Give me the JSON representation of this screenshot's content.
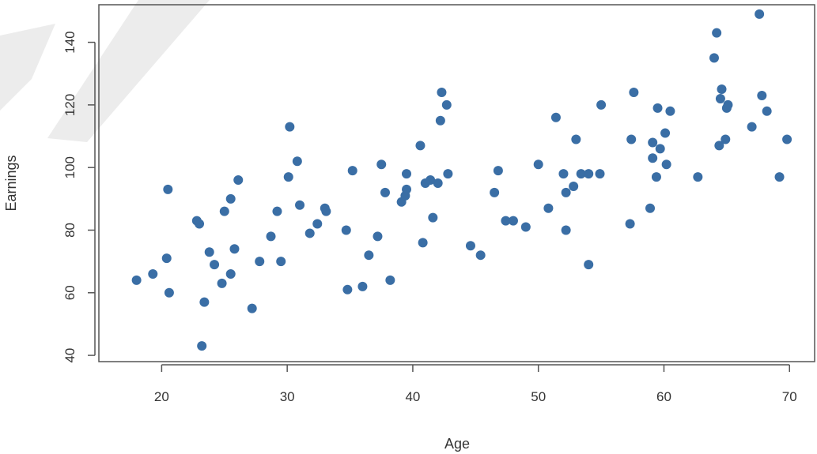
{
  "chart_data": {
    "type": "scatter",
    "title": "",
    "xlabel": "Age",
    "ylabel": "Earnings",
    "xlim": [
      15,
      72
    ],
    "ylim": [
      38,
      152
    ],
    "xticks": [
      20,
      30,
      40,
      50,
      60,
      70
    ],
    "yticks": [
      40,
      60,
      80,
      100,
      120,
      140
    ],
    "grid": false,
    "legend": "none",
    "point_color": "#3a6ea5",
    "points": [
      [
        18,
        64
      ],
      [
        19.3,
        66
      ],
      [
        20.4,
        71
      ],
      [
        20.6,
        60
      ],
      [
        20.5,
        93
      ],
      [
        22.8,
        83
      ],
      [
        23.0,
        82
      ],
      [
        23.4,
        57
      ],
      [
        23.2,
        43
      ],
      [
        23.8,
        73
      ],
      [
        24.2,
        69
      ],
      [
        24.8,
        63
      ],
      [
        25.0,
        86
      ],
      [
        25.5,
        66
      ],
      [
        25.5,
        90
      ],
      [
        25.8,
        74
      ],
      [
        26.1,
        96
      ],
      [
        27.2,
        55
      ],
      [
        27.8,
        70
      ],
      [
        28.7,
        78
      ],
      [
        29.2,
        86
      ],
      [
        29.5,
        70
      ],
      [
        30.1,
        97
      ],
      [
        30.2,
        113
      ],
      [
        30.8,
        102
      ],
      [
        31.0,
        88
      ],
      [
        31.8,
        79
      ],
      [
        32.4,
        82
      ],
      [
        33.0,
        87
      ],
      [
        33.1,
        86
      ],
      [
        34.7,
        80
      ],
      [
        34.8,
        61
      ],
      [
        35.2,
        99
      ],
      [
        36.0,
        62
      ],
      [
        36.5,
        72
      ],
      [
        37.2,
        78
      ],
      [
        37.5,
        101
      ],
      [
        37.8,
        92
      ],
      [
        38.2,
        64
      ],
      [
        39.1,
        89
      ],
      [
        39.4,
        91
      ],
      [
        39.5,
        93
      ],
      [
        39.5,
        98
      ],
      [
        40.6,
        107
      ],
      [
        40.8,
        76
      ],
      [
        41.0,
        95
      ],
      [
        41.4,
        96
      ],
      [
        41.6,
        84
      ],
      [
        42.0,
        95
      ],
      [
        42.2,
        115
      ],
      [
        42.3,
        124
      ],
      [
        42.7,
        120
      ],
      [
        42.8,
        98
      ],
      [
        44.6,
        75
      ],
      [
        45.4,
        72
      ],
      [
        46.5,
        92
      ],
      [
        46.8,
        99
      ],
      [
        47.4,
        83
      ],
      [
        48.0,
        83
      ],
      [
        49.0,
        81
      ],
      [
        50.0,
        101
      ],
      [
        50.8,
        87
      ],
      [
        51.4,
        116
      ],
      [
        52.0,
        98
      ],
      [
        52.2,
        92
      ],
      [
        52.2,
        80
      ],
      [
        52.8,
        94
      ],
      [
        53.0,
        109
      ],
      [
        53.4,
        98
      ],
      [
        54.0,
        98
      ],
      [
        54.0,
        69
      ],
      [
        54.9,
        98
      ],
      [
        55.0,
        120
      ],
      [
        57.3,
        82
      ],
      [
        57.4,
        109
      ],
      [
        57.6,
        124
      ],
      [
        58.9,
        87
      ],
      [
        59.1,
        108
      ],
      [
        59.1,
        103
      ],
      [
        59.4,
        97
      ],
      [
        59.5,
        119
      ],
      [
        59.7,
        106
      ],
      [
        60.1,
        111
      ],
      [
        60.2,
        101
      ],
      [
        60.5,
        118
      ],
      [
        62.7,
        97
      ],
      [
        64.0,
        135
      ],
      [
        64.2,
        143
      ],
      [
        64.4,
        107
      ],
      [
        64.5,
        122
      ],
      [
        64.6,
        125
      ],
      [
        64.9,
        109
      ],
      [
        65.0,
        119
      ],
      [
        65.1,
        120
      ],
      [
        67.0,
        113
      ],
      [
        67.6,
        149
      ],
      [
        67.8,
        123
      ],
      [
        68.2,
        118
      ],
      [
        69.2,
        97
      ],
      [
        69.8,
        109
      ]
    ]
  }
}
